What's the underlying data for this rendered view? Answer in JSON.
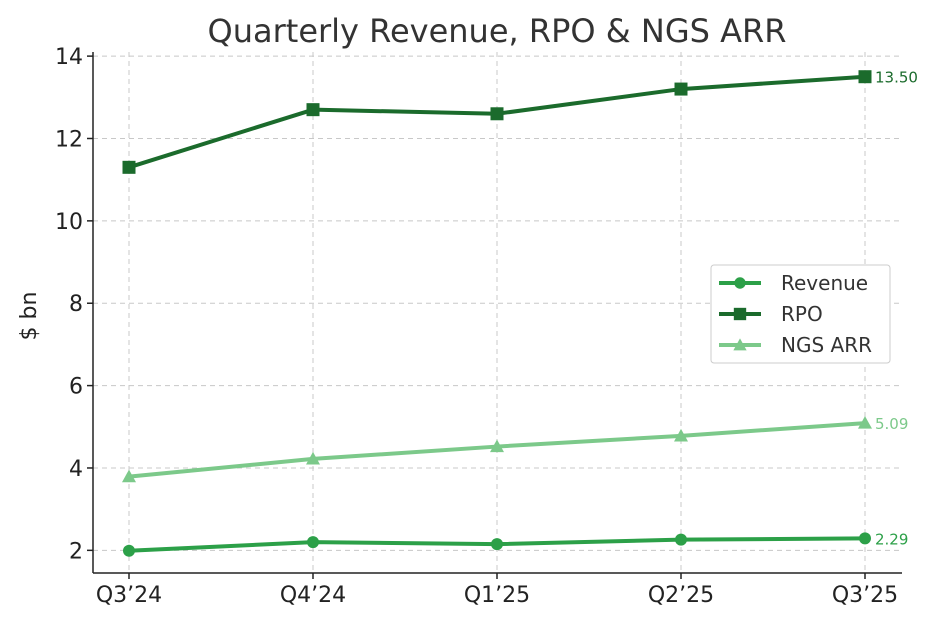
{
  "chart_data": {
    "type": "line",
    "title": "Quarterly Revenue, RPO & NGS ARR",
    "xlabel": "",
    "ylabel": "$ bn",
    "categories": [
      "Q3’24",
      "Q4’24",
      "Q1’25",
      "Q2’25",
      "Q3’25"
    ],
    "ylim": [
      1.45,
      14.1
    ],
    "yticks": [
      2,
      4,
      6,
      8,
      10,
      12,
      14
    ],
    "grid": true,
    "legend_position": "center-right",
    "series": [
      {
        "name": "Revenue",
        "values": [
          1.99,
          2.2,
          2.15,
          2.26,
          2.29
        ],
        "color": "#2ca048",
        "marker": "circle",
        "end_label": "2.29"
      },
      {
        "name": "RPO",
        "values": [
          11.3,
          12.7,
          12.6,
          13.2,
          13.5
        ],
        "color": "#1b6b2c",
        "marker": "square",
        "end_label": "13.50"
      },
      {
        "name": "NGS ARR",
        "values": [
          3.79,
          4.22,
          4.52,
          4.78,
          5.09
        ],
        "color": "#7cc98a",
        "marker": "triangle",
        "end_label": "5.09"
      }
    ]
  }
}
